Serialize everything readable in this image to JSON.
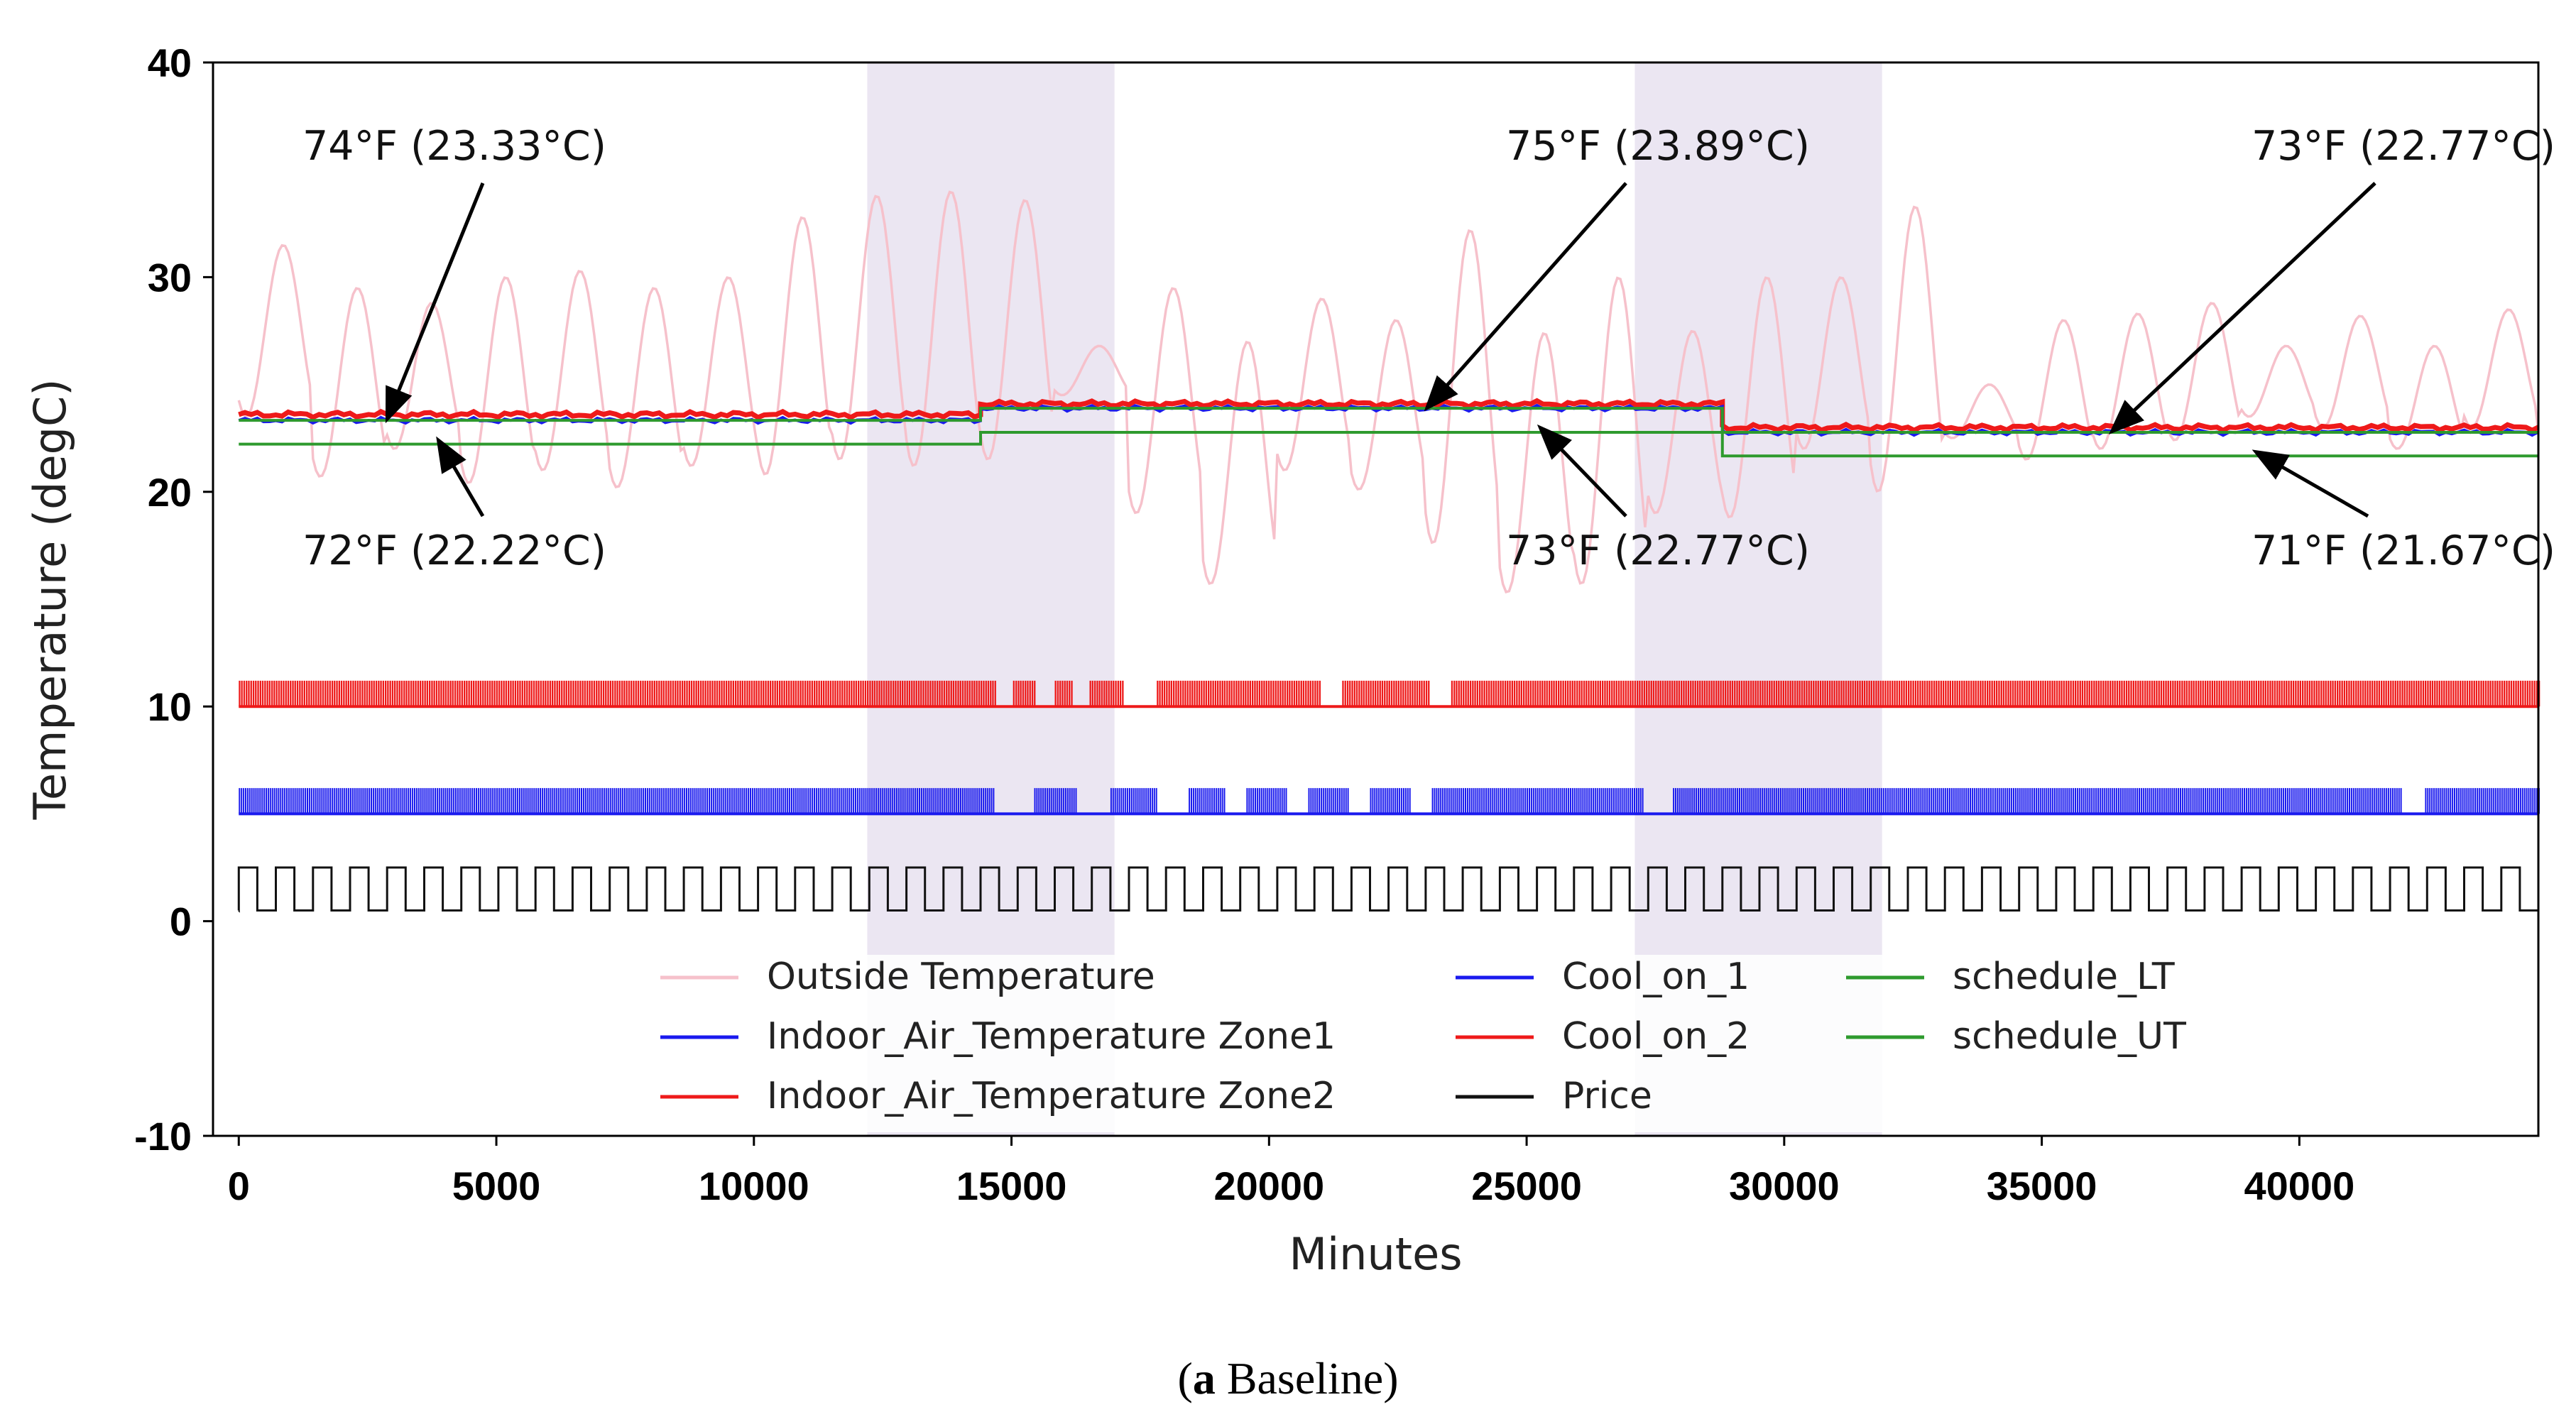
{
  "chart_data": {
    "type": "line",
    "title": "",
    "xlabel": "Minutes",
    "ylabel": "Temperature (degC)",
    "xlim": [
      -500,
      44640
    ],
    "ylim": [
      -10,
      40
    ],
    "xticks": [
      0,
      5000,
      10000,
      15000,
      20000,
      25000,
      30000,
      35000,
      40000
    ],
    "xtick_labels": [
      "0",
      "5000",
      "10000",
      "15000",
      "20000",
      "25000",
      "30000",
      "35000",
      "40000"
    ],
    "yticks": [
      -10,
      0,
      10,
      20,
      30,
      40
    ],
    "ytick_labels": [
      "-10",
      "0",
      "10",
      "20",
      "30",
      "40"
    ],
    "grid": false,
    "shaded_regions": [
      [
        12200,
        17000
      ],
      [
        27100,
        31900
      ]
    ],
    "shade_color": "#ebe6f2",
    "series": [
      {
        "name": "Outside Temperature",
        "color": "#f6c1cb",
        "daily_peaks": [
          31.5,
          29.5,
          28.8,
          30.0,
          30.3,
          29.5,
          30.0,
          32.8,
          33.8,
          34.0,
          33.6,
          26.8,
          29.5,
          27.0,
          29.0,
          28.0,
          32.2,
          27.4,
          30.0,
          27.5,
          30.0,
          30.0,
          33.3,
          25.0,
          28.0,
          28.3,
          28.8,
          26.8,
          28.2,
          26.8,
          28.5,
          30.0,
          29.5
        ],
        "daily_troughs": [
          23.5,
          20.7,
          22.0,
          20.4,
          21.0,
          20.2,
          21.2,
          20.8,
          21.5,
          21.2,
          21.5,
          24.5,
          19.0,
          15.7,
          21.0,
          20.1,
          17.6,
          15.3,
          15.7,
          19.0,
          18.8,
          22.0,
          20.0,
          22.5,
          21.5,
          22.0,
          22.4,
          23.5,
          23.0,
          22.0,
          23.0,
          22.0,
          19.0
        ]
      },
      {
        "name": "Indoor_Air_Temperature Zone1",
        "color": "#1a1aee",
        "segments": [
          {
            "x": [
              0,
              14400
            ],
            "y": 23.33
          },
          {
            "x": [
              14400,
              28800
            ],
            "y": 23.89
          },
          {
            "x": [
              28800,
              44640
            ],
            "y": 22.77
          }
        ]
      },
      {
        "name": "Indoor_Air_Temperature Zone2",
        "color": "#ee1a1a",
        "segments": [
          {
            "x": [
              0,
              14400
            ],
            "y": 23.6
          },
          {
            "x": [
              14400,
              28800
            ],
            "y": 24.1
          },
          {
            "x": [
              28800,
              44640
            ],
            "y": 23.0
          }
        ]
      },
      {
        "name": "Cool_on_1",
        "color": "#1a1aee",
        "baseline": 5.0,
        "on_level": 6.2,
        "off_gaps": [
          [
            14700,
            15400
          ],
          [
            16300,
            16900
          ],
          [
            17850,
            18400
          ],
          [
            19150,
            19550
          ],
          [
            20350,
            20750
          ],
          [
            21550,
            21950
          ],
          [
            22750,
            23150
          ],
          [
            27300,
            27800
          ],
          [
            42000,
            42400
          ]
        ]
      },
      {
        "name": "Cool_on_2",
        "color": "#ee1a1a",
        "baseline": 10.0,
        "on_level": 11.2,
        "off_gaps": [
          [
            14700,
            15000
          ],
          [
            15500,
            15800
          ],
          [
            16200,
            16500
          ],
          [
            17200,
            17800
          ],
          [
            21000,
            21400
          ],
          [
            23150,
            23500
          ]
        ]
      },
      {
        "name": "Price",
        "color": "#111111",
        "low": 0.5,
        "high": 2.5,
        "period_minutes": 720
      },
      {
        "name": "schedule_LT",
        "color": "#2e9a2e",
        "segments": [
          {
            "x": [
              0,
              14400
            ],
            "y": 22.22
          },
          {
            "x": [
              14400,
              28800
            ],
            "y": 22.77
          },
          {
            "x": [
              28800,
              44640
            ],
            "y": 21.67
          }
        ]
      },
      {
        "name": "schedule_UT",
        "color": "#2e9a2e",
        "segments": [
          {
            "x": [
              0,
              14400
            ],
            "y": 23.33
          },
          {
            "x": [
              14400,
              28800
            ],
            "y": 23.89
          },
          {
            "x": [
              28800,
              44640
            ],
            "y": 22.77
          }
        ]
      }
    ],
    "annotations": [
      {
        "text": "74°F (23.33°C)",
        "arrow_to": [
          2900,
          23.5
        ]
      },
      {
        "text": "72°F (22.22°C)",
        "arrow_to": [
          3900,
          22.3
        ]
      },
      {
        "text": "75°F (23.89°C)",
        "arrow_to": [
          23100,
          24.0
        ]
      },
      {
        "text": "73°F (22.77°C)",
        "arrow_to": [
          25300,
          22.9
        ]
      },
      {
        "text": "73°F (22.77°C)",
        "arrow_to": [
          36400,
          22.9
        ]
      },
      {
        "text": "71°F (21.67°C)",
        "arrow_to": [
          39200,
          21.8
        ]
      }
    ],
    "legend": {
      "placement": "lower-center",
      "columns": 3,
      "entries": [
        "Outside Temperature",
        "Indoor_Air_Temperature Zone1",
        "Indoor_Air_Temperature Zone2",
        "Cool_on_1",
        "Cool_on_2",
        "Price",
        "schedule_LT",
        "schedule_UT"
      ]
    }
  },
  "caption": {
    "label": "a",
    "text": " Baseline"
  }
}
